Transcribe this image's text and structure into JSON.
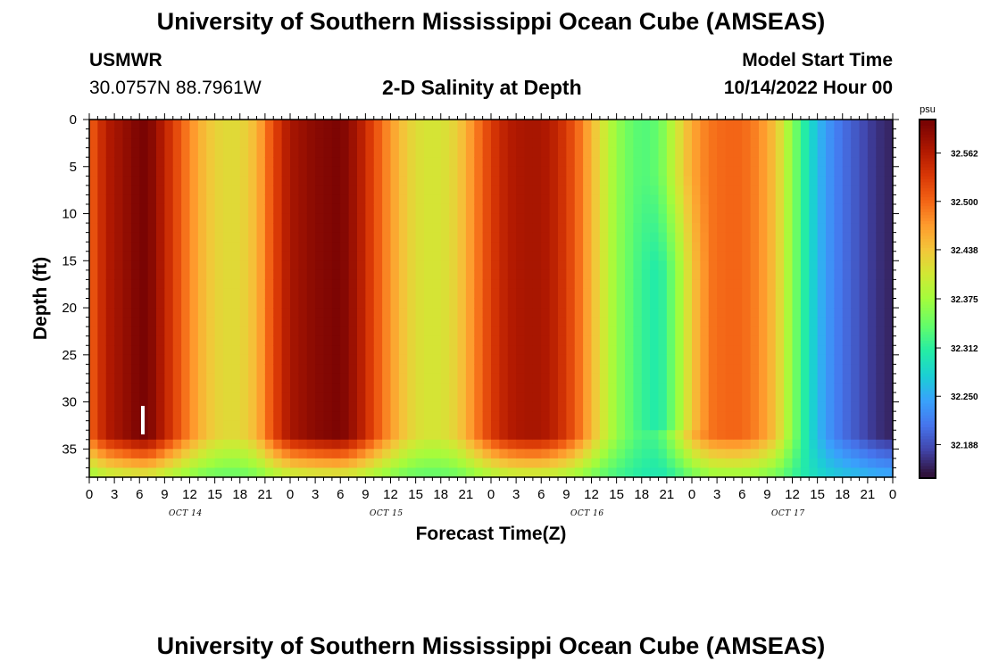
{
  "header": {
    "title": "University of Southern Mississippi Ocean Cube (AMSEAS)",
    "station": "USMWR",
    "location": "30.0757N  88.7961W",
    "plot_title": "2-D Salinity at Depth",
    "model_start_label": "Model Start Time",
    "model_start_value": "10/14/2022 Hour 00"
  },
  "footer": {
    "title": "University of Southern Mississippi Ocean Cube (AMSEAS)"
  },
  "chart_data": {
    "type": "heatmap",
    "title": "2-D Salinity at Depth",
    "xlabel": "Forecast Time(Z)",
    "ylabel": "Depth (ft)",
    "x_tick_labels": [
      "0",
      "3",
      "6",
      "9",
      "12",
      "15",
      "18",
      "21",
      "0",
      "3",
      "6",
      "9",
      "12",
      "15",
      "18",
      "21",
      "0",
      "3",
      "6",
      "9",
      "12",
      "15",
      "18",
      "21",
      "0",
      "3",
      "6",
      "9",
      "12",
      "15",
      "18",
      "21",
      "0"
    ],
    "x_date_labels": [
      "OCT 14",
      "OCT 15",
      "OCT 16",
      "OCT 17"
    ],
    "xlim_hours": [
      0,
      96
    ],
    "y_ticks": [
      0,
      5,
      10,
      15,
      20,
      25,
      30,
      35
    ],
    "ylim": [
      0,
      38
    ],
    "y_inverted": true,
    "colorbar": {
      "unit": "psu",
      "ticks": [
        "32.562",
        "32.500",
        "32.438",
        "32.375",
        "32.312",
        "32.250",
        "32.188"
      ],
      "range": [
        32.15,
        32.6
      ],
      "colormap": "turbo"
    },
    "surface_salinity_by_hour": [
      [
        0,
        32.5
      ],
      [
        2,
        32.56
      ],
      [
        4,
        32.58
      ],
      [
        6,
        32.6
      ],
      [
        7,
        32.6
      ],
      [
        8,
        32.58
      ],
      [
        10,
        32.53
      ],
      [
        12,
        32.48
      ],
      [
        14,
        32.44
      ],
      [
        16,
        32.42
      ],
      [
        18,
        32.42
      ],
      [
        20,
        32.45
      ],
      [
        22,
        32.52
      ],
      [
        24,
        32.57
      ],
      [
        27,
        32.59
      ],
      [
        30,
        32.6
      ],
      [
        32,
        32.57
      ],
      [
        34,
        32.52
      ],
      [
        36,
        32.47
      ],
      [
        38,
        32.43
      ],
      [
        40,
        32.41
      ],
      [
        42,
        32.41
      ],
      [
        44,
        32.43
      ],
      [
        46,
        32.48
      ],
      [
        48,
        32.53
      ],
      [
        50,
        32.56
      ],
      [
        52,
        32.57
      ],
      [
        54,
        32.57
      ],
      [
        56,
        32.55
      ],
      [
        58,
        32.51
      ],
      [
        60,
        32.45
      ],
      [
        62,
        32.39
      ],
      [
        64,
        32.35
      ],
      [
        66,
        32.33
      ],
      [
        68,
        32.34
      ],
      [
        70,
        32.4
      ],
      [
        72,
        32.46
      ],
      [
        74,
        32.49
      ],
      [
        76,
        32.5
      ],
      [
        78,
        32.5
      ],
      [
        80,
        32.48
      ],
      [
        82,
        32.44
      ],
      [
        84,
        32.36
      ],
      [
        86,
        32.29
      ],
      [
        88,
        32.24
      ],
      [
        90,
        32.21
      ],
      [
        92,
        32.19
      ],
      [
        94,
        32.17
      ],
      [
        96,
        32.16
      ]
    ],
    "marker_label": "I"
  }
}
